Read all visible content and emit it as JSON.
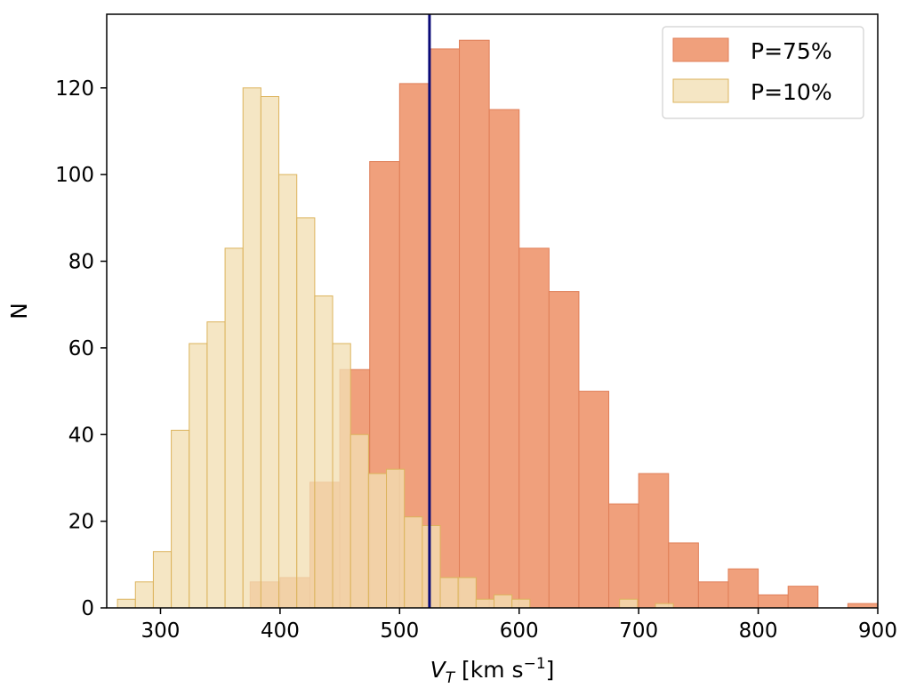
{
  "chart_data": {
    "type": "histogram",
    "xlabel": "V",
    "xlabel_sub": "T",
    "xlabel_unit_prefix": " [km s",
    "xlabel_unit_sup": "−1",
    "xlabel_unit_suffix": "]",
    "ylabel": "N",
    "xlim": [
      255,
      900
    ],
    "ylim": [
      0,
      137
    ],
    "xticks": [
      300,
      400,
      500,
      600,
      700,
      800,
      900
    ],
    "yticks": [
      0,
      20,
      40,
      60,
      80,
      100,
      120
    ],
    "legend_position": "top-right",
    "vline": {
      "x": 525,
      "color": "#0a0a78"
    },
    "series": [
      {
        "name": "P=75%",
        "fill": "#f0a07c",
        "edge": "#e07f58",
        "bins": [
          {
            "x0": 375,
            "x1": 400,
            "y": 6
          },
          {
            "x0": 400,
            "x1": 425,
            "y": 7
          },
          {
            "x0": 425,
            "x1": 450,
            "y": 29
          },
          {
            "x0": 450,
            "x1": 475,
            "y": 55
          },
          {
            "x0": 475,
            "x1": 500,
            "y": 103
          },
          {
            "x0": 500,
            "x1": 525,
            "y": 121
          },
          {
            "x0": 525,
            "x1": 550,
            "y": 129
          },
          {
            "x0": 550,
            "x1": 575,
            "y": 131
          },
          {
            "x0": 575,
            "x1": 600,
            "y": 115
          },
          {
            "x0": 600,
            "x1": 625,
            "y": 83
          },
          {
            "x0": 625,
            "x1": 650,
            "y": 73
          },
          {
            "x0": 650,
            "x1": 675,
            "y": 50
          },
          {
            "x0": 675,
            "x1": 700,
            "y": 24
          },
          {
            "x0": 700,
            "x1": 725,
            "y": 31
          },
          {
            "x0": 725,
            "x1": 750,
            "y": 15
          },
          {
            "x0": 750,
            "x1": 775,
            "y": 6
          },
          {
            "x0": 775,
            "x1": 800,
            "y": 9
          },
          {
            "x0": 800,
            "x1": 825,
            "y": 3
          },
          {
            "x0": 825,
            "x1": 850,
            "y": 5
          },
          {
            "x0": 875,
            "x1": 900,
            "y": 1
          }
        ]
      },
      {
        "name": "P=10%",
        "fill": "#f2dfb3",
        "edge": "#dcb35c",
        "opacity": 0.78,
        "bins": [
          {
            "x0": 264,
            "x1": 279,
            "y": 2
          },
          {
            "x0": 279,
            "x1": 294,
            "y": 6
          },
          {
            "x0": 294,
            "x1": 309,
            "y": 13
          },
          {
            "x0": 309,
            "x1": 324,
            "y": 41
          },
          {
            "x0": 324,
            "x1": 339,
            "y": 61
          },
          {
            "x0": 339,
            "x1": 354,
            "y": 66
          },
          {
            "x0": 354,
            "x1": 369,
            "y": 83
          },
          {
            "x0": 369,
            "x1": 384,
            "y": 120
          },
          {
            "x0": 384,
            "x1": 399,
            "y": 118
          },
          {
            "x0": 399,
            "x1": 414,
            "y": 100
          },
          {
            "x0": 414,
            "x1": 429,
            "y": 90
          },
          {
            "x0": 429,
            "x1": 444,
            "y": 72
          },
          {
            "x0": 444,
            "x1": 459,
            "y": 61
          },
          {
            "x0": 459,
            "x1": 474,
            "y": 40
          },
          {
            "x0": 474,
            "x1": 489,
            "y": 31
          },
          {
            "x0": 489,
            "x1": 504,
            "y": 32
          },
          {
            "x0": 504,
            "x1": 519,
            "y": 21
          },
          {
            "x0": 519,
            "x1": 534,
            "y": 19
          },
          {
            "x0": 534,
            "x1": 549,
            "y": 7
          },
          {
            "x0": 549,
            "x1": 564,
            "y": 7
          },
          {
            "x0": 564,
            "x1": 579,
            "y": 2
          },
          {
            "x0": 579,
            "x1": 594,
            "y": 3
          },
          {
            "x0": 594,
            "x1": 609,
            "y": 2
          },
          {
            "x0": 609,
            "x1": 624,
            "y": 0
          },
          {
            "x0": 624,
            "x1": 639,
            "y": 0
          },
          {
            "x0": 639,
            "x1": 654,
            "y": 0
          },
          {
            "x0": 654,
            "x1": 669,
            "y": 0
          },
          {
            "x0": 669,
            "x1": 684,
            "y": 0
          },
          {
            "x0": 684,
            "x1": 699,
            "y": 2
          },
          {
            "x0": 699,
            "x1": 714,
            "y": 0
          },
          {
            "x0": 714,
            "x1": 729,
            "y": 1
          }
        ]
      }
    ]
  }
}
